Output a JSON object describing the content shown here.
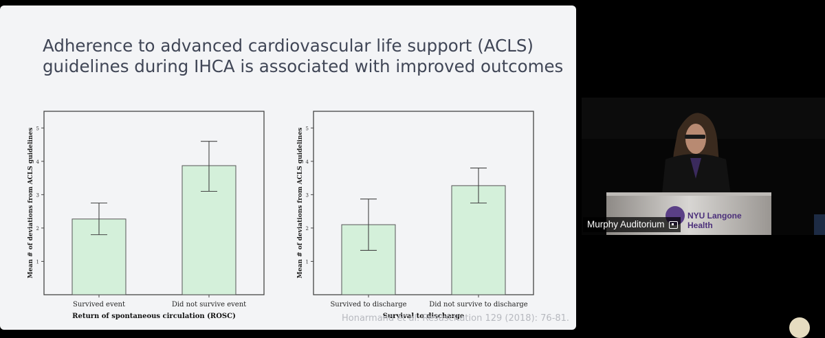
{
  "slide": {
    "title_line1": "Adherence to advanced cardiovascular life support (ACLS)",
    "title_line2": "guidelines during IHCA is associated with improved outcomes",
    "citation": "Honarmand et al. Resuscitation 129 (2018): 76-81."
  },
  "chart_data": [
    {
      "type": "bar",
      "title": "",
      "xlabel": "Return of spontaneous circulation (ROSC)",
      "ylabel": "Mean # of deviations from ACLS guidelines",
      "categories": [
        "Survived event",
        "Did not survive event"
      ],
      "values": [
        2.27,
        3.87
      ],
      "error_low": [
        1.8,
        3.1
      ],
      "error_high": [
        2.75,
        4.6
      ],
      "ylim": [
        0,
        5.5
      ],
      "yticks": [
        1,
        2,
        3,
        4,
        5
      ],
      "bar_color": "#d4f0da",
      "grid": false
    },
    {
      "type": "bar",
      "title": "",
      "xlabel": "Survival to discharge",
      "ylabel": "Mean # of deviations from ACLS guidelines",
      "categories": [
        "Survived to discharge",
        "Did not survive to discharge"
      ],
      "values": [
        2.1,
        3.27
      ],
      "error_low": [
        1.33,
        2.75
      ],
      "error_high": [
        2.87,
        3.8
      ],
      "ylim": [
        0,
        5.5
      ],
      "yticks": [
        1,
        2,
        3,
        4,
        5
      ],
      "bar_color": "#d4f0da",
      "grid": false
    }
  ],
  "video": {
    "room_label": "Murphy Auditorium",
    "podium_text_line1": "NYU Langone",
    "podium_text_line2": "Health"
  }
}
